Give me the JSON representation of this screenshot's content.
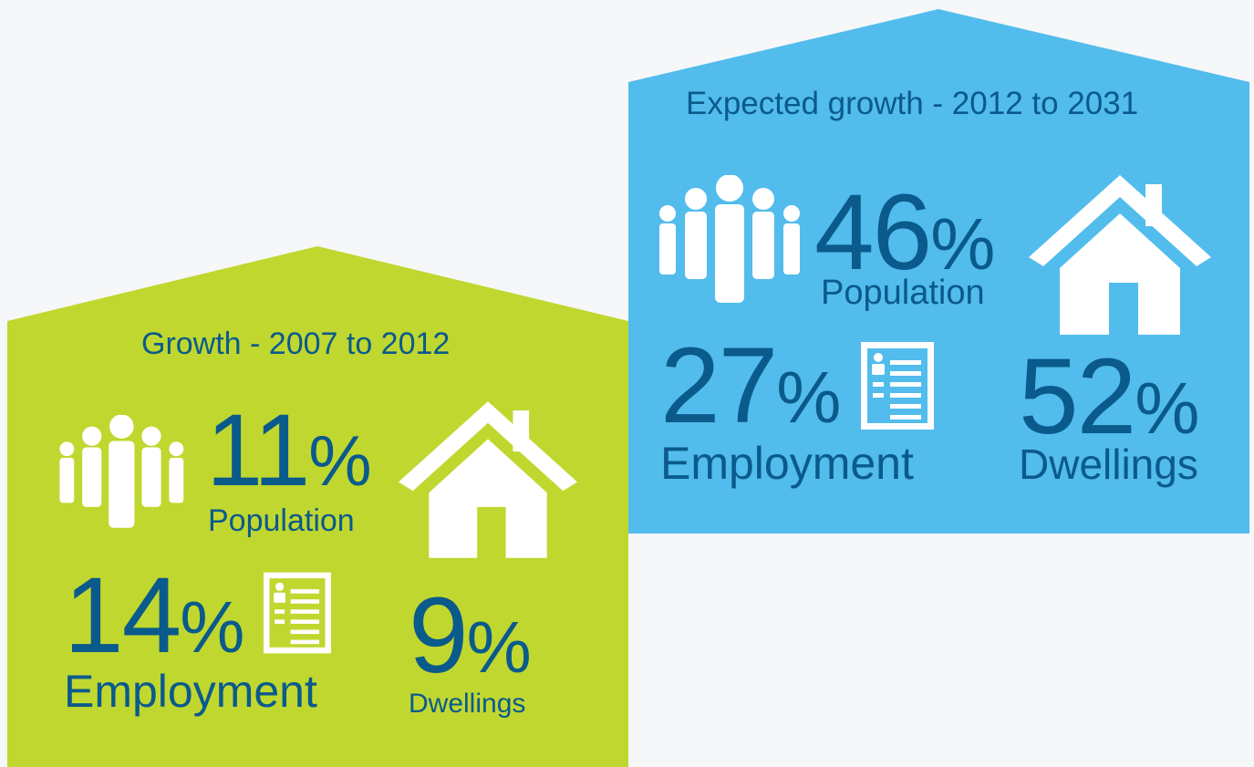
{
  "colors": {
    "background": "#f5f7f9",
    "green_panel": "#c0d72f",
    "blue_panel": "#52bcec",
    "text_dark_blue": "#0a5a8c",
    "icon_white": "#ffffff"
  },
  "panels": {
    "past": {
      "title": "Growth - 2007 to 2012",
      "population": {
        "value": "11",
        "unit": "%",
        "label": "Population",
        "icon": "people-icon"
      },
      "employment": {
        "value": "14",
        "unit": "%",
        "label": "Employment",
        "icon": "document-icon"
      },
      "dwellings": {
        "value": "9",
        "unit": "%",
        "label": "Dwellings",
        "icon": "house-icon"
      }
    },
    "expected": {
      "title": "Expected growth - 2012 to 2031",
      "population": {
        "value": "46",
        "unit": "%",
        "label": "Population",
        "icon": "people-icon"
      },
      "employment": {
        "value": "27",
        "unit": "%",
        "label": "Employment",
        "icon": "document-icon"
      },
      "dwellings": {
        "value": "52",
        "unit": "%",
        "label": "Dwellings",
        "icon": "house-icon"
      }
    }
  }
}
